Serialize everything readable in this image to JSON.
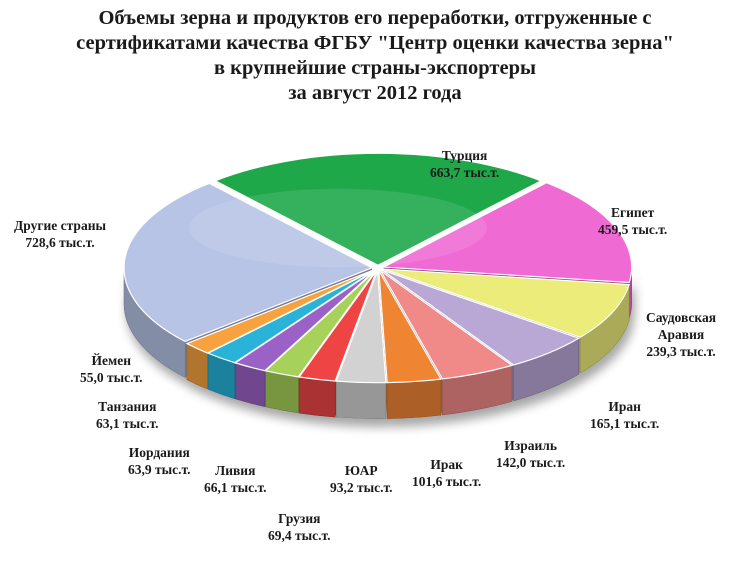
{
  "chart_data": {
    "type": "pie",
    "title_lines": [
      "Объемы зерна и продуктов его переработки, отгруженные с",
      "сертификатами качества ФГБУ \"Центр оценки качества зерна\"",
      "в крупнейшие страны-экспортеры",
      "за  август 2012 года"
    ],
    "unit": "тыс.т.",
    "legend": "none",
    "slices": [
      {
        "name": "Турция",
        "value": 663.7,
        "label": "663,7 тыс.т.",
        "color": "#1fa84a"
      },
      {
        "name": "Египет",
        "value": 459.5,
        "label": "459,5 тыс.т.",
        "color": "#f06ad4"
      },
      {
        "name": "Саудовская Аравия",
        "value": 239.3,
        "label": "239,3 тыс.т.",
        "color": "#ecec7a"
      },
      {
        "name": "Иран",
        "value": 165.1,
        "label": "165,1 тыс.т.",
        "color": "#b9a7d6"
      },
      {
        "name": "Израиль",
        "value": 142.0,
        "label": "142,0 тыс.т.",
        "color": "#f08a88"
      },
      {
        "name": "Ирак",
        "value": 101.6,
        "label": "101,6 тыс.т.",
        "color": "#ef8433"
      },
      {
        "name": "ЮАР",
        "value": 93.2,
        "label": "93,2 тыс.т.",
        "color": "#d2d2d2"
      },
      {
        "name": "Грузия",
        "value": 69.4,
        "label": "69,4 тыс.т.",
        "color": "#ee4444"
      },
      {
        "name": "Ливия",
        "value": 66.1,
        "label": "66,1 тыс.т.",
        "color": "#a6d15a"
      },
      {
        "name": "Иордания",
        "value": 63.9,
        "label": "63,9 тыс.т.",
        "color": "#9a62c6"
      },
      {
        "name": "Танзания",
        "value": 63.1,
        "label": "63,1 тыс.т.",
        "color": "#2ab3d9"
      },
      {
        "name": "Йемен",
        "value": 55.0,
        "label": "55,0 тыс.т.",
        "color": "#f7a23e"
      },
      {
        "name": "Другие страны",
        "value": 728.6,
        "label": "728,6 тыс.т.",
        "color": "#b7c4e6"
      }
    ]
  }
}
